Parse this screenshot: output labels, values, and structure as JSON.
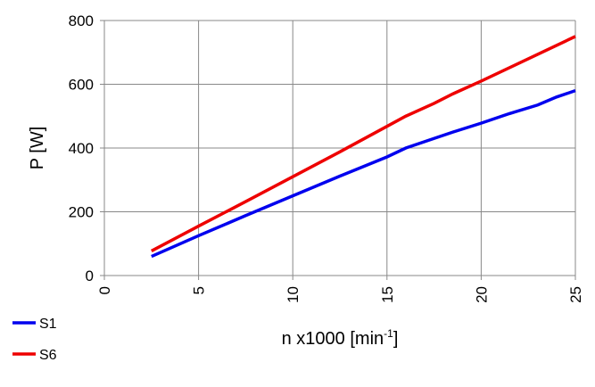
{
  "chart_data": {
    "type": "line",
    "y_label": "P [W]",
    "x_label": {
      "text": "n x1000  [min",
      "superscript": "-1",
      "suffix": "]"
    },
    "xlim": [
      0,
      25
    ],
    "xticks": [
      0,
      5,
      10,
      15,
      20,
      25
    ],
    "ylim": [
      0,
      800
    ],
    "yticks": [
      0,
      200,
      400,
      600,
      800
    ],
    "grid": true,
    "legend": "bottom-left",
    "series": [
      {
        "name": "S1",
        "color": "#0000ee",
        "x": [
          2.5,
          5,
          7.5,
          10,
          12.5,
          15,
          16,
          17.5,
          18.5,
          20,
          21.5,
          23,
          24,
          25
        ],
        "values": [
          60,
          125,
          188,
          250,
          312,
          372,
          400,
          430,
          450,
          478,
          508,
          535,
          560,
          580
        ]
      },
      {
        "name": "S6",
        "color": "#ee0000",
        "x": [
          2.5,
          5,
          7.5,
          10,
          12.5,
          15,
          16,
          17.5,
          18.5,
          20,
          22.5,
          25
        ],
        "values": [
          77,
          155,
          232,
          310,
          388,
          468,
          500,
          540,
          570,
          610,
          680,
          750
        ]
      }
    ]
  }
}
